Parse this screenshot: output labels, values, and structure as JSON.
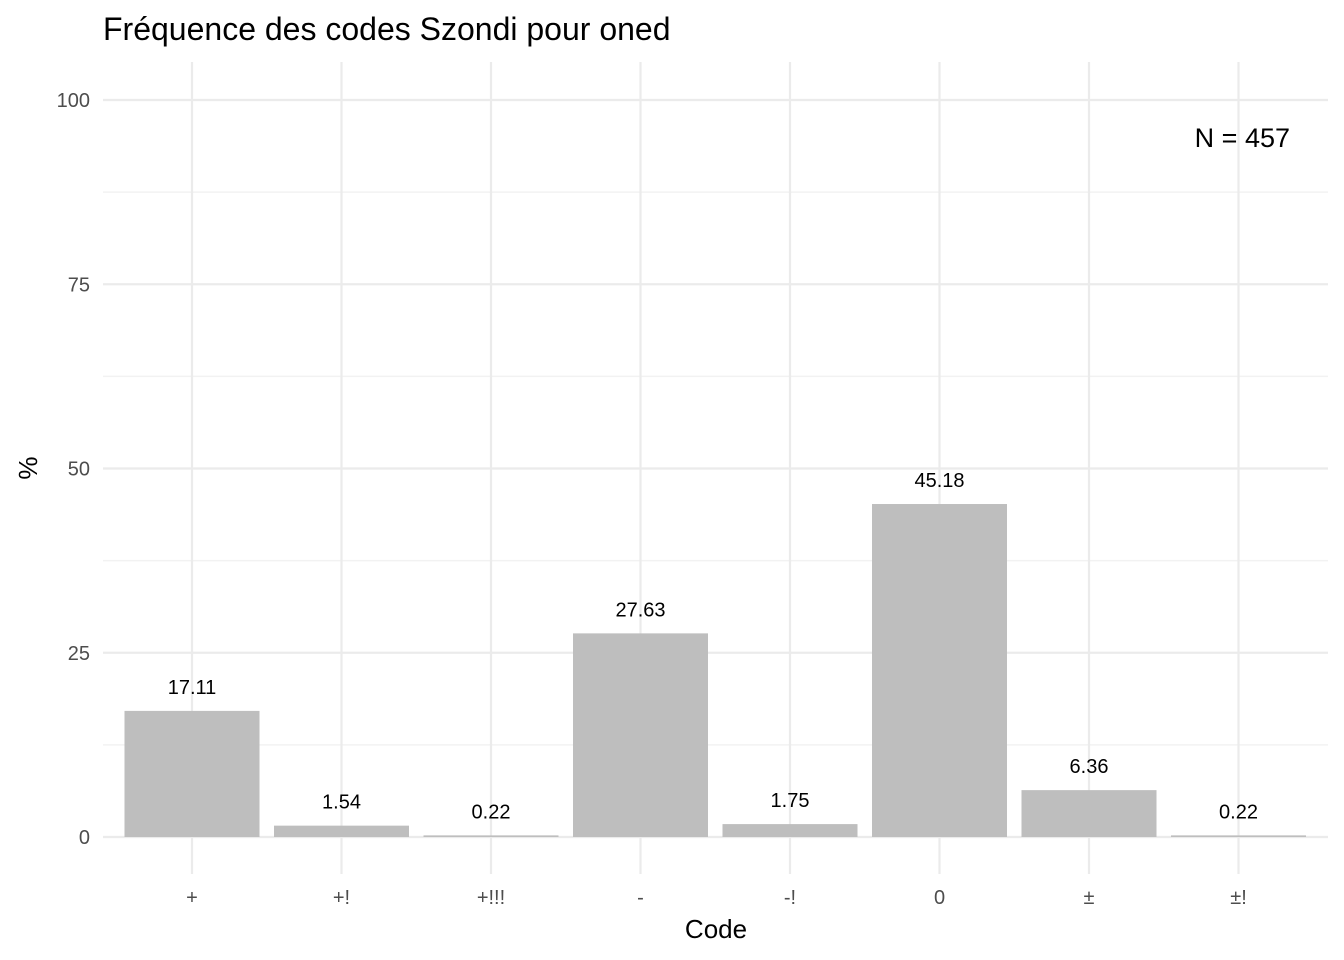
{
  "chart_data": {
    "type": "bar",
    "title": "Fréquence des codes Szondi pour oned",
    "xlabel": "Code",
    "ylabel": "%",
    "categories": [
      "+",
      "+!",
      "+!!!",
      "-",
      "-!",
      "0",
      "±",
      "±!"
    ],
    "values": [
      17.11,
      1.54,
      0.22,
      27.63,
      1.75,
      45.18,
      6.36,
      0.22
    ],
    "data_labels": [
      "17.11",
      "1.54",
      "0.22",
      "27.63",
      "1.75",
      "45.18",
      "6.36",
      "0.22"
    ],
    "ylim": [
      0,
      100
    ],
    "yticks": [
      0,
      25,
      50,
      75,
      100
    ],
    "ytick_labels": [
      "0",
      "25",
      "50",
      "75",
      "100"
    ],
    "annotation": "N = 457",
    "bar_color": "#bebebe",
    "grid": true,
    "legend": "none"
  }
}
